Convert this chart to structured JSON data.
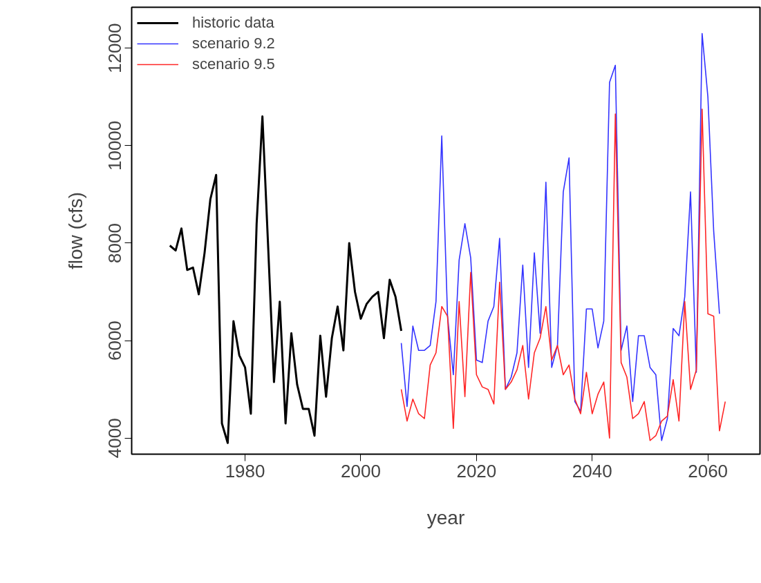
{
  "chart_data": {
    "type": "line",
    "xlabel": "year",
    "ylabel": "flow (cfs)",
    "xlim": [
      1960.4,
      2069
    ],
    "ylim": [
      3670,
      12840
    ],
    "xticks": [
      1980,
      2000,
      2020,
      2040,
      2060
    ],
    "yticks": [
      4000,
      6000,
      8000,
      10000,
      12000
    ],
    "grid": false,
    "legend": "top left",
    "marker": "none",
    "line_style": "solid",
    "series": [
      {
        "name": "historic data",
        "color": "#000000",
        "x": [
          1967,
          1968,
          1969,
          1970,
          1971,
          1972,
          1973,
          1974,
          1975,
          1976,
          1977,
          1978,
          1979,
          1980,
          1981,
          1982,
          1983,
          1984,
          1985,
          1986,
          1987,
          1988,
          1989,
          1990,
          1991,
          1992,
          1993,
          1994,
          1995,
          1996,
          1997,
          1998,
          1999,
          2000,
          2001,
          2002,
          2003,
          2004,
          2005,
          2006,
          2007
        ],
        "values": [
          7950,
          7850,
          8300,
          7450,
          7500,
          6950,
          7800,
          8900,
          9400,
          4300,
          3900,
          6400,
          5700,
          5450,
          4500,
          8400,
          10600,
          7900,
          5150,
          6800,
          4300,
          6150,
          5100,
          4600,
          4600,
          4050,
          6100,
          4850,
          6050,
          6700,
          5800,
          8000,
          7000,
          6450,
          6750,
          6900,
          7000,
          6050,
          7250,
          6900,
          6200
        ]
      },
      {
        "name": "scenario 9.2",
        "color": "#3333ff",
        "x": [
          2007,
          2008,
          2009,
          2010,
          2011,
          2012,
          2013,
          2014,
          2015,
          2016,
          2017,
          2018,
          2019,
          2020,
          2021,
          2022,
          2023,
          2024,
          2025,
          2026,
          2027,
          2028,
          2029,
          2030,
          2031,
          2032,
          2033,
          2034,
          2035,
          2036,
          2037,
          2038,
          2039,
          2040,
          2041,
          2042,
          2043,
          2044,
          2045,
          2046,
          2047,
          2048,
          2049,
          2050,
          2051,
          2052,
          2053,
          2054,
          2055,
          2056,
          2057,
          2058,
          2059,
          2060,
          2061,
          2062
        ],
        "values": [
          5950,
          4650,
          6300,
          5800,
          5800,
          5900,
          6800,
          10200,
          6500,
          5300,
          7650,
          8400,
          7700,
          5600,
          5550,
          6400,
          6700,
          8100,
          5000,
          5250,
          5750,
          7550,
          5450,
          7800,
          6150,
          9250,
          5450,
          5900,
          9050,
          9750,
          4750,
          4550,
          6650,
          6650,
          5850,
          6400,
          11300,
          11650,
          5800,
          6300,
          4750,
          6100,
          6100,
          5450,
          5300,
          3950,
          4400,
          6250,
          6100,
          6900,
          9050,
          5350,
          12300,
          11000,
          8250,
          6550
        ]
      },
      {
        "name": "scenario 9.5",
        "color": "#ff2626",
        "x": [
          2007,
          2008,
          2009,
          2010,
          2011,
          2012,
          2013,
          2014,
          2015,
          2016,
          2017,
          2018,
          2019,
          2020,
          2021,
          2022,
          2023,
          2024,
          2025,
          2026,
          2027,
          2028,
          2029,
          2030,
          2031,
          2032,
          2033,
          2034,
          2035,
          2036,
          2037,
          2038,
          2039,
          2040,
          2041,
          2042,
          2043,
          2044,
          2045,
          2046,
          2047,
          2048,
          2049,
          2050,
          2051,
          2052,
          2053,
          2054,
          2055,
          2056,
          2057,
          2058,
          2059,
          2060,
          2061,
          2062,
          2063
        ],
        "values": [
          5000,
          4350,
          4800,
          4500,
          4400,
          5500,
          5750,
          6700,
          6500,
          4200,
          6800,
          4850,
          7400,
          5300,
          5050,
          5000,
          4700,
          7200,
          5000,
          5150,
          5400,
          5900,
          4800,
          5750,
          6050,
          6700,
          5600,
          5900,
          5300,
          5500,
          4800,
          4500,
          5350,
          4500,
          4900,
          5150,
          4000,
          10650,
          5550,
          5250,
          4400,
          4500,
          4750,
          3950,
          4050,
          4350,
          4450,
          5200,
          4350,
          6800,
          5000,
          5400,
          10750,
          6550,
          6500,
          4150,
          4750
        ]
      }
    ]
  }
}
